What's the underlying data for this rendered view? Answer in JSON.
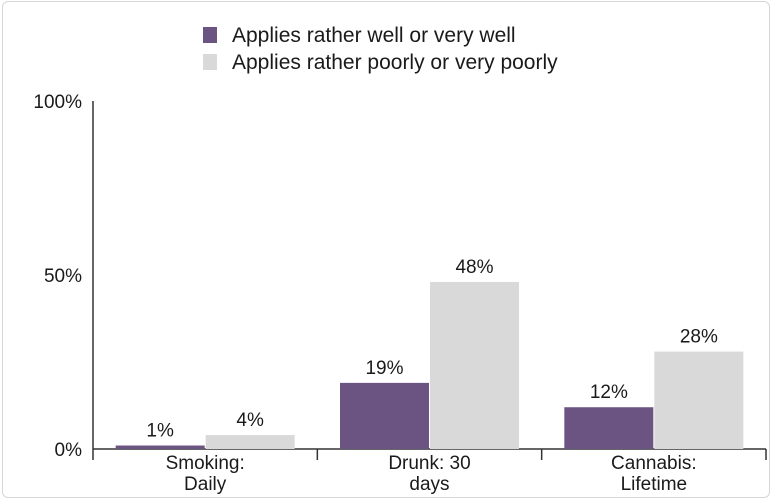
{
  "chart_data": {
    "type": "bar",
    "categories": [
      [
        "Smoking:",
        "Daily"
      ],
      [
        "Drunk: 30",
        "days"
      ],
      [
        "Cannabis:",
        "Lifetime"
      ]
    ],
    "series": [
      {
        "name": "Applies rather well or very well",
        "values": [
          1,
          19,
          12
        ],
        "labels": [
          "1%",
          "19%",
          "12%"
        ],
        "color": "#6b5482"
      },
      {
        "name": "Applies rather poorly or very poorly",
        "values": [
          4,
          48,
          28
        ],
        "labels": [
          "4%",
          "48%",
          "28%"
        ],
        "color": "#d9d9d9"
      }
    ],
    "ylim": [
      0,
      100
    ],
    "yticks": [
      0,
      50,
      100
    ],
    "ytick_labels": [
      "0%",
      "50%",
      "100%"
    ],
    "legend_position": "top",
    "grid": false
  }
}
